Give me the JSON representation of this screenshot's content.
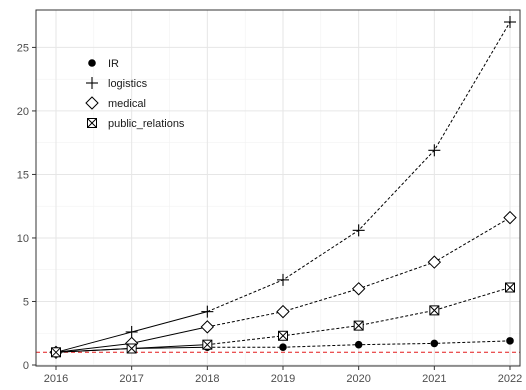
{
  "chart_data": {
    "type": "line",
    "x": [
      2016,
      2017,
      2018,
      2019,
      2020,
      2021,
      2022
    ],
    "xlim": [
      2016,
      2022
    ],
    "ylim": [
      0,
      27
    ],
    "x_ticks": [
      "2016",
      "2017",
      "2018",
      "2019",
      "2020",
      "2021",
      "2022"
    ],
    "y_ticks": [
      "0",
      "5",
      "10",
      "15",
      "20",
      "25"
    ],
    "grid": true,
    "legend_position": "top-left",
    "reference_line": {
      "y": 1,
      "color": "#e41a1c",
      "style": "dashed"
    },
    "series": [
      {
        "name": "IR",
        "marker": "filled-circle",
        "values": [
          1.0,
          1.3,
          1.4,
          1.4,
          1.6,
          1.7,
          1.9
        ]
      },
      {
        "name": "logistics",
        "marker": "plus",
        "values": [
          1.0,
          2.6,
          4.2,
          6.7,
          10.6,
          16.9,
          27.0
        ]
      },
      {
        "name": "medical",
        "marker": "open-diamond",
        "values": [
          1.0,
          1.7,
          3.0,
          4.2,
          6.0,
          8.1,
          11.6
        ]
      },
      {
        "name": "public_relations",
        "marker": "boxed-x",
        "values": [
          1.0,
          1.3,
          1.6,
          2.3,
          3.1,
          4.3,
          6.1
        ]
      }
    ]
  }
}
